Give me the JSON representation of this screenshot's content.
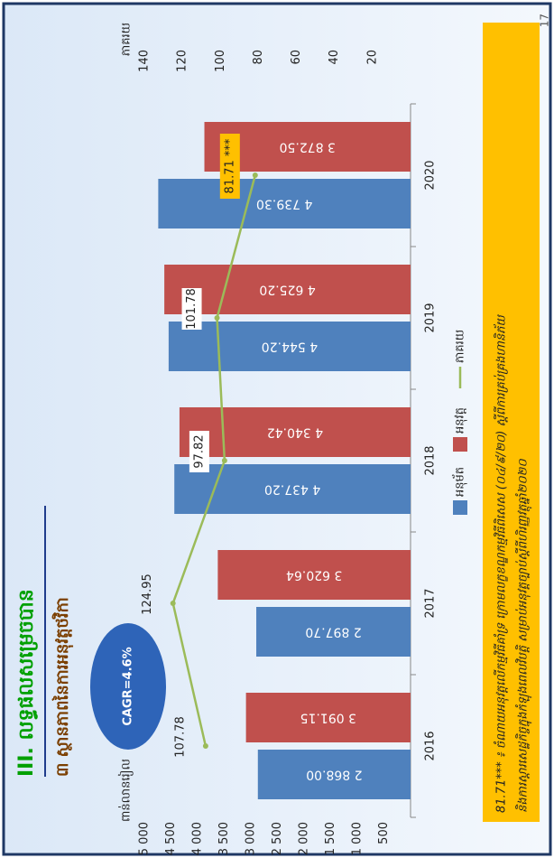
{
  "page_number": "17",
  "chart_data": {
    "type": "bar",
    "title": "III. លទ្ធផលសម្រេចបាន",
    "subtitle": "៣ ស្ថានភាពនៃការអនុវត្តថវិកា",
    "y_axis_label": "ពាន់លានរៀល",
    "y2_axis_label": "ភាគរយ",
    "annotation": "CAGR=4.6%",
    "footnote": [
      "81.71*** ៖ ចំណាយអនុវត្តលើកម្មវិធីគាំទ្រ ក្រោមលក្ខខណ្ឌកម្មវិធីពិសេស (០៤/៩/២០) ស្ដីពីការគ្រប់គ្រងហានិភ័យ",
      "និងការស្ដារសេដ្ឋកិច្ចក្នុងកំឡុងពេលវិបត្តិ សម្រាប់អនុវត្តច្បាប់ស្ដីពីហិរញ្ញវត្ថុឆ្នាំ២០២០"
    ],
    "categories": [
      "2016",
      "2017",
      "2018",
      "2019",
      "2020"
    ],
    "ylim": [
      0,
      5000
    ],
    "yticks": [
      {
        "value": 500,
        "label": "500"
      },
      {
        "value": 1000,
        "label": "1 000"
      },
      {
        "value": 1500,
        "label": "1 500"
      },
      {
        "value": 2000,
        "label": "2 000"
      },
      {
        "value": 2500,
        "label": "2 500"
      },
      {
        "value": 3000,
        "label": "3 000"
      },
      {
        "value": 3500,
        "label": "3 500"
      },
      {
        "value": 4000,
        "label": "4 000"
      },
      {
        "value": 4500,
        "label": "4 500"
      },
      {
        "value": 5000,
        "label": "5 000"
      }
    ],
    "y2lim": [
      0,
      140
    ],
    "y2ticks": [
      20,
      40,
      60,
      80,
      100,
      120,
      140
    ],
    "legend": "bottom",
    "series": [
      {
        "name": "អនុម័ត",
        "color": "#4f81bd",
        "values": [
          2868.0,
          2897.7,
          4437.2,
          4544.2,
          4739.3
        ],
        "value_labels": [
          "2 868.00",
          "2 897.70",
          "4 437.20",
          "4 544.20",
          "4 739.30"
        ]
      },
      {
        "name": "អនុវត្ត",
        "color": "#c0504d",
        "values": [
          3091.15,
          3620.64,
          4340.42,
          4625.2,
          3872.5
        ],
        "value_labels": [
          "3 091.15",
          "3 620.64",
          "4 340.42",
          "4 625.20",
          "3 872.50"
        ]
      },
      {
        "name": "ភាគរយ",
        "color": "#9bbb59",
        "type": "line",
        "axis": "y2",
        "values": [
          107.78,
          124.95,
          97.82,
          101.78,
          81.71
        ],
        "value_labels": [
          "107.78",
          "124.95",
          "97.82",
          "101.78",
          "81.71 ***"
        ]
      }
    ]
  }
}
